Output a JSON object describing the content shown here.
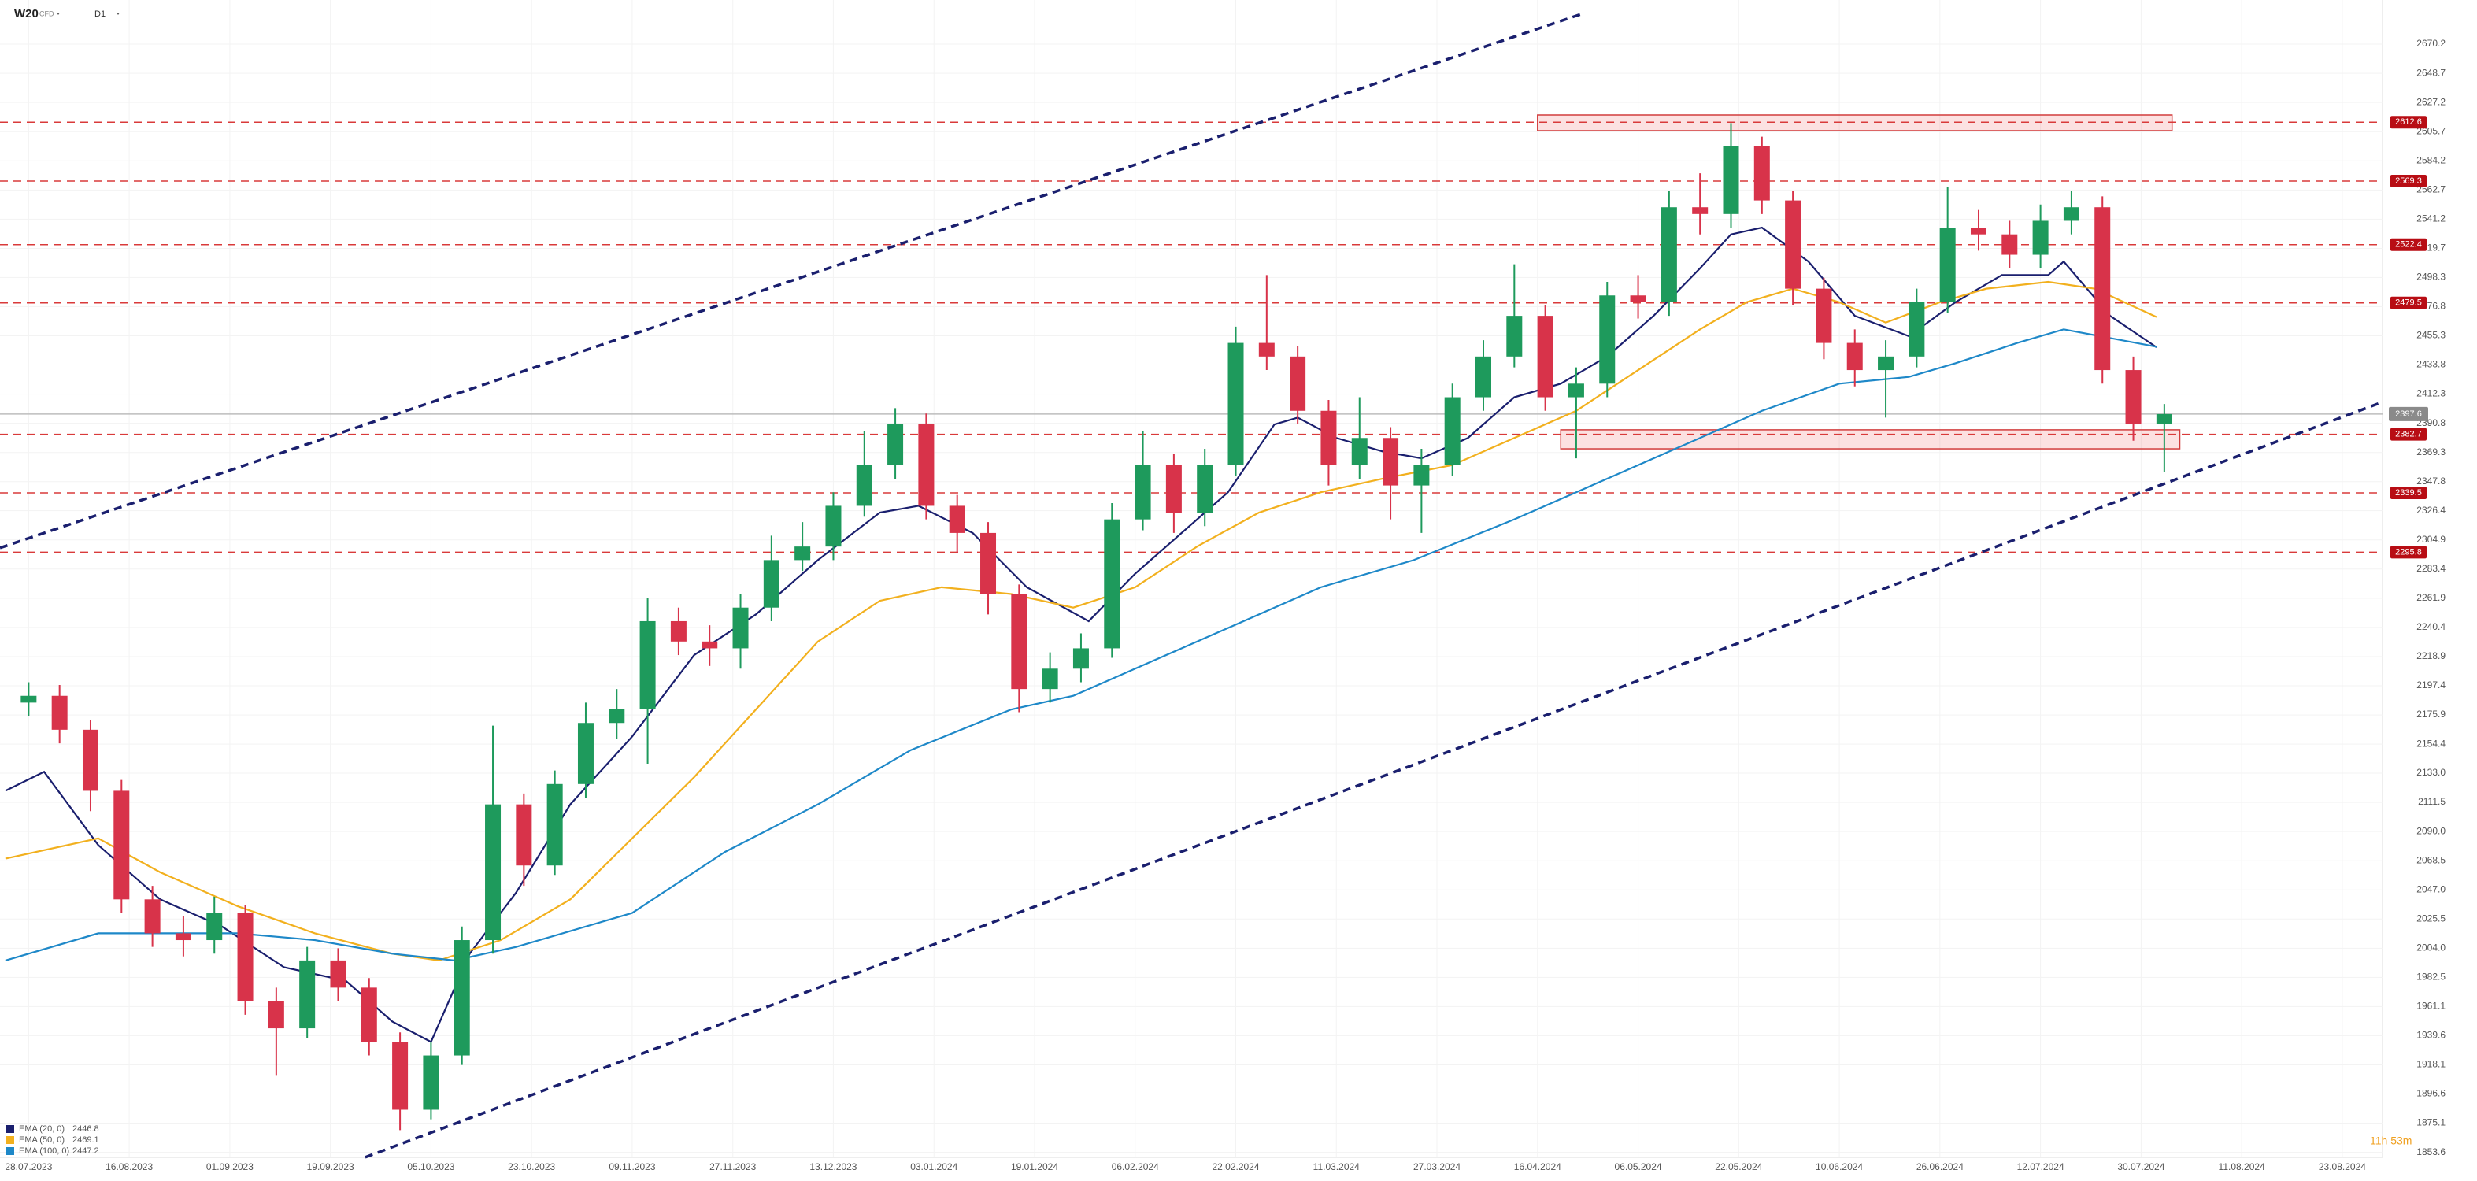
{
  "chart_data": {
    "type": "candlestick",
    "symbol": "W20",
    "instrument_type": "CFD",
    "timeframe": "D1",
    "countdown": "11h 53m",
    "color_up": "#1e9a5c",
    "color_down": "#d8334a",
    "grid": true,
    "xlim": [
      -3.7,
      304.2
    ],
    "ylim": [
      1849.9,
      2702.7
    ],
    "xticks": [
      {
        "value": 0,
        "label": "28.07.2023"
      },
      {
        "value": 13,
        "label": "16.08.2023"
      },
      {
        "value": 26,
        "label": "01.09.2023"
      },
      {
        "value": 39,
        "label": "19.09.2023"
      },
      {
        "value": 52,
        "label": "05.10.2023"
      },
      {
        "value": 65,
        "label": "23.10.2023"
      },
      {
        "value": 78,
        "label": "09.11.2023"
      },
      {
        "value": 91,
        "label": "27.11.2023"
      },
      {
        "value": 104,
        "label": "13.12.2023"
      },
      {
        "value": 117,
        "label": "03.01.2024"
      },
      {
        "value": 130,
        "label": "19.01.2024"
      },
      {
        "value": 143,
        "label": "06.02.2024"
      },
      {
        "value": 156,
        "label": "22.02.2024"
      },
      {
        "value": 169,
        "label": "11.03.2024"
      },
      {
        "value": 182,
        "label": "27.03.2024"
      },
      {
        "value": 195,
        "label": "16.04.2024"
      },
      {
        "value": 208,
        "label": "06.05.2024"
      },
      {
        "value": 221,
        "label": "22.05.2024"
      },
      {
        "value": 234,
        "label": "10.06.2024"
      },
      {
        "value": 247,
        "label": "26.06.2024"
      },
      {
        "value": 260,
        "label": "12.07.2024"
      },
      {
        "value": 273,
        "label": "30.07.2024"
      },
      {
        "value": 286,
        "label": "11.08.2024"
      },
      {
        "value": 299,
        "label": "23.08.2024"
      }
    ],
    "yticks": [
      2670.2,
      2648.7,
      2627.2,
      2605.7,
      2584.2,
      2562.7,
      2541.2,
      2519.7,
      2498.3,
      2476.8,
      2455.3,
      2433.8,
      2412.3,
      2390.8,
      2369.3,
      2347.8,
      2326.4,
      2304.9,
      2283.4,
      2261.9,
      2240.4,
      2218.9,
      2197.4,
      2175.9,
      2154.4,
      {
        "value": 2133,
        "label": "2133.0"
      },
      2111.5,
      {
        "value": 2090,
        "label": "2090.0"
      },
      2068.5,
      {
        "value": 2047,
        "label": "2047.0"
      },
      2025.5,
      {
        "value": 2004,
        "label": "2004.0"
      },
      1982.5,
      1961.1,
      1939.6,
      1918.1,
      1896.6,
      1875.1,
      1853.6
    ],
    "x": [
      0,
      4,
      8,
      12,
      16,
      20,
      24,
      28,
      32,
      36,
      40,
      44,
      48,
      52,
      56,
      60,
      64,
      68,
      72,
      76,
      80,
      84,
      88,
      92,
      96,
      100,
      104,
      108,
      112,
      116,
      120,
      124,
      128,
      132,
      136,
      140,
      144,
      148,
      152,
      156,
      160,
      164,
      168,
      172,
      176,
      180,
      184,
      188,
      192,
      196,
      200,
      204,
      208,
      212,
      216,
      220,
      224,
      228,
      232,
      236,
      240,
      244,
      248,
      252,
      256,
      260,
      264,
      268,
      272,
      276
    ],
    "open": [
      2185,
      2190,
      2165,
      2120,
      2040,
      2015,
      2010,
      2030,
      1965,
      1945,
      1995,
      1975,
      1935,
      1885,
      1925,
      2010,
      2110,
      2065,
      2125,
      2170,
      2180,
      2245,
      2230,
      2225,
      2255,
      2290,
      2300,
      2330,
      2360,
      2390,
      2330,
      2310,
      2265,
      2195,
      2210,
      2225,
      2320,
      2360,
      2325,
      2360,
      2450,
      2440,
      2400,
      2360,
      2380,
      2345,
      2360,
      2410,
      2440,
      2470,
      2410,
      2420,
      2485,
      2480,
      2550,
      2545,
      2595,
      2555,
      2490,
      2450,
      2430,
      2440,
      2480,
      2535,
      2530,
      2515,
      2540,
      2550,
      2430,
      2390
    ],
    "high": [
      2200,
      2198,
      2172,
      2128,
      2050,
      2028,
      2042,
      2036,
      1975,
      2005,
      2004,
      1982,
      1942,
      1935,
      2020,
      2168,
      2118,
      2135,
      2185,
      2195,
      2262,
      2255,
      2242,
      2265,
      2308,
      2318,
      2340,
      2385,
      2402,
      2398,
      2338,
      2318,
      2272,
      2222,
      2236,
      2332,
      2385,
      2368,
      2372,
      2462,
      2500,
      2448,
      2408,
      2410,
      2388,
      2372,
      2420,
      2452,
      2508,
      2478,
      2432,
      2495,
      2500,
      2562,
      2575,
      2612,
      2602,
      2562,
      2498,
      2460,
      2452,
      2490,
      2565,
      2548,
      2540,
      2552,
      2562,
      2558,
      2440,
      2405
    ],
    "low": [
      2175,
      2155,
      2105,
      2030,
      2005,
      1998,
      2000,
      1955,
      1910,
      1938,
      1965,
      1925,
      1870,
      1878,
      1918,
      2000,
      2050,
      2058,
      2115,
      2158,
      2140,
      2220,
      2212,
      2210,
      2245,
      2282,
      2290,
      2322,
      2350,
      2320,
      2295,
      2250,
      2178,
      2185,
      2200,
      2218,
      2312,
      2310,
      2315,
      2352,
      2430,
      2390,
      2345,
      2350,
      2320,
      2310,
      2352,
      2400,
      2432,
      2400,
      2365,
      2410,
      2468,
      2470,
      2530,
      2535,
      2545,
      2478,
      2438,
      2418,
      2395,
      2432,
      2472,
      2518,
      2505,
      2505,
      2530,
      2420,
      2378,
      2355
    ],
    "close": [
      2190,
      2165,
      2120,
      2040,
      2015,
      2010,
      2030,
      1965,
      1945,
      1995,
      1975,
      1935,
      1885,
      1925,
      2010,
      2110,
      2065,
      2125,
      2170,
      2180,
      2245,
      2230,
      2225,
      2255,
      2290,
      2300,
      2330,
      2360,
      2390,
      2330,
      2310,
      2265,
      2195,
      2210,
      2225,
      2320,
      2360,
      2325,
      2360,
      2450,
      2440,
      2400,
      2360,
      2380,
      2345,
      2360,
      2410,
      2440,
      2470,
      2410,
      2420,
      2485,
      2480,
      2550,
      2545,
      2595,
      2555,
      2490,
      2450,
      2430,
      2440,
      2480,
      2535,
      2530,
      2515,
      2540,
      2550,
      2430,
      2390,
      2397.6
    ],
    "series": [
      {
        "name": "EMA (20, 0)",
        "last": 2446.8,
        "color": "#1a1f6e",
        "x": [
          -3,
          2,
          9,
          17,
          25,
          33,
          41,
          47,
          52,
          57,
          63,
          70,
          78,
          86,
          94,
          102,
          110,
          115,
          122,
          129,
          137,
          143,
          149,
          155,
          161,
          164,
          169,
          175,
          180,
          186,
          192,
          198,
          204,
          210,
          216,
          220,
          224,
          230,
          236,
          243,
          249,
          255,
          261,
          263,
          269,
          275
        ],
        "values": [
          2120,
          2134,
          2080,
          2040,
          2020,
          1990,
          1980,
          1950,
          1935,
          2000,
          2045,
          2110,
          2160,
          2220,
          2250,
          2290,
          2325,
          2330,
          2310,
          2270,
          2245,
          2280,
          2310,
          2340,
          2390,
          2395,
          2380,
          2370,
          2365,
          2380,
          2410,
          2420,
          2440,
          2470,
          2505,
          2530,
          2535,
          2510,
          2470,
          2455,
          2480,
          2500,
          2500,
          2510,
          2470,
          2446.8
        ]
      },
      {
        "name": "EMA (50, 0)",
        "last": 2469.1,
        "color": "#f2b01e",
        "x": [
          -3,
          9,
          17,
          27,
          37,
          47,
          53,
          61,
          70,
          78,
          86,
          94,
          102,
          110,
          118,
          127,
          135,
          143,
          151,
          159,
          167,
          175,
          184,
          192,
          200,
          208,
          216,
          222,
          228,
          234,
          240,
          247,
          253,
          261,
          267,
          275
        ],
        "values": [
          2070,
          2085,
          2060,
          2035,
          2015,
          2000,
          1995,
          2010,
          2040,
          2085,
          2130,
          2180,
          2230,
          2260,
          2270,
          2265,
          2255,
          2270,
          2300,
          2325,
          2340,
          2350,
          2360,
          2380,
          2400,
          2430,
          2460,
          2480,
          2490,
          2480,
          2465,
          2480,
          2490,
          2495,
          2490,
          2469.1
        ]
      },
      {
        "name": "EMA (100, 0)",
        "last": 2447.2,
        "color": "#1e88c8",
        "x": [
          -3,
          9,
          17,
          27,
          37,
          47,
          55,
          63,
          78,
          90,
          102,
          114,
          127,
          135,
          143,
          155,
          167,
          179,
          192,
          200,
          212,
          224,
          234,
          243,
          249,
          257,
          263,
          275
        ],
        "values": [
          1995,
          2015,
          2015,
          2015,
          2010,
          2000,
          1995,
          2005,
          2030,
          2075,
          2110,
          2150,
          2180,
          2190,
          2210,
          2240,
          2270,
          2290,
          2320,
          2340,
          2370,
          2400,
          2420,
          2425,
          2435,
          2450,
          2460,
          2447.2
        ]
      }
    ],
    "levels": [
      2612.6,
      2569.3,
      2522.4,
      2479.5,
      2382.7,
      2339.5,
      2295.8
    ],
    "level_color": "#d93a3a",
    "current_price": 2397.6,
    "zones": [
      {
        "x": [
          195,
          277
        ],
        "y": [
          2606.4,
          2618
        ]
      },
      {
        "x": [
          198,
          278
        ],
        "y": [
          2372,
          2386
        ]
      }
    ],
    "trendlines": [
      {
        "x": [
          -3.7,
          201
        ],
        "values": [
          2299,
          2693
        ]
      },
      {
        "x": [
          43.5,
          304.2
        ],
        "values": [
          1850,
          2406.5
        ]
      }
    ],
    "trend_color": "#1a1f6e"
  }
}
